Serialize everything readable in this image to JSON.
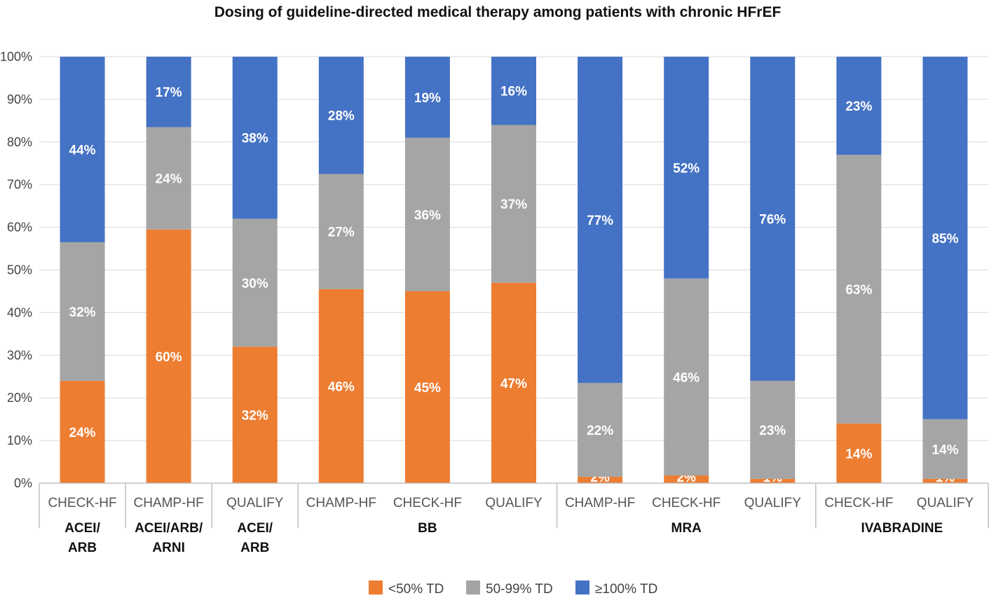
{
  "chart_data": {
    "type": "bar",
    "stacked": true,
    "percent": true,
    "title": "Dosing of guideline-directed medical therapy among patients with chronic HFrEF",
    "xlabel": "",
    "ylabel": "",
    "ylim": [
      0,
      100
    ],
    "yticks": [
      "0%",
      "10%",
      "20%",
      "30%",
      "40%",
      "50%",
      "60%",
      "70%",
      "80%",
      "90%",
      "100%"
    ],
    "grid": true,
    "legend_position": "bottom",
    "categories": [
      "CHECK-HF",
      "CHAMP-HF",
      "QUALIFY",
      "CHAMP-HF",
      "CHECK-HF",
      "QUALIFY",
      "CHAMP-HF",
      "CHECK-HF",
      "QUALIFY",
      "CHECK-HF",
      "QUALIFY"
    ],
    "groups": [
      {
        "lines": [
          "ACEI/",
          "ARB"
        ],
        "start": 0,
        "end": 0
      },
      {
        "lines": [
          "ACEI/ARB/",
          "ARNI"
        ],
        "start": 1,
        "end": 1
      },
      {
        "lines": [
          "ACEI/",
          "ARB"
        ],
        "start": 2,
        "end": 2
      },
      {
        "lines": [
          "BB"
        ],
        "start": 3,
        "end": 5
      },
      {
        "lines": [
          "MRA"
        ],
        "start": 6,
        "end": 8
      },
      {
        "lines": [
          "IVABRADINE"
        ],
        "start": 9,
        "end": 10
      }
    ],
    "series": [
      {
        "name": "<50% TD",
        "color": "#ED7D31",
        "values": [
          24,
          59.5,
          32,
          45.5,
          45,
          47,
          1.5,
          1.8,
          1.0,
          14,
          1.0
        ],
        "labels": [
          "24%",
          "60%",
          "32%",
          "46%",
          "45%",
          "47%",
          "2%",
          "2%",
          "1%",
          "14%",
          "1%"
        ]
      },
      {
        "name": "50-99% TD",
        "color": "#A5A5A5",
        "values": [
          32.5,
          24,
          30,
          27,
          36,
          37,
          22,
          46.2,
          23.0,
          63,
          14
        ],
        "labels": [
          "32%",
          "24%",
          "30%",
          "27%",
          "36%",
          "37%",
          "22%",
          "46%",
          "23%",
          "63%",
          "14%"
        ]
      },
      {
        "name": "≥100% TD",
        "color": "#4472C4",
        "values": [
          43.5,
          16.5,
          38,
          27.5,
          19,
          16,
          76.5,
          52,
          76,
          23,
          85
        ],
        "labels": [
          "44%",
          "17%",
          "38%",
          "28%",
          "19%",
          "16%",
          "77%",
          "52%",
          "76%",
          "23%",
          "85%"
        ]
      }
    ]
  }
}
